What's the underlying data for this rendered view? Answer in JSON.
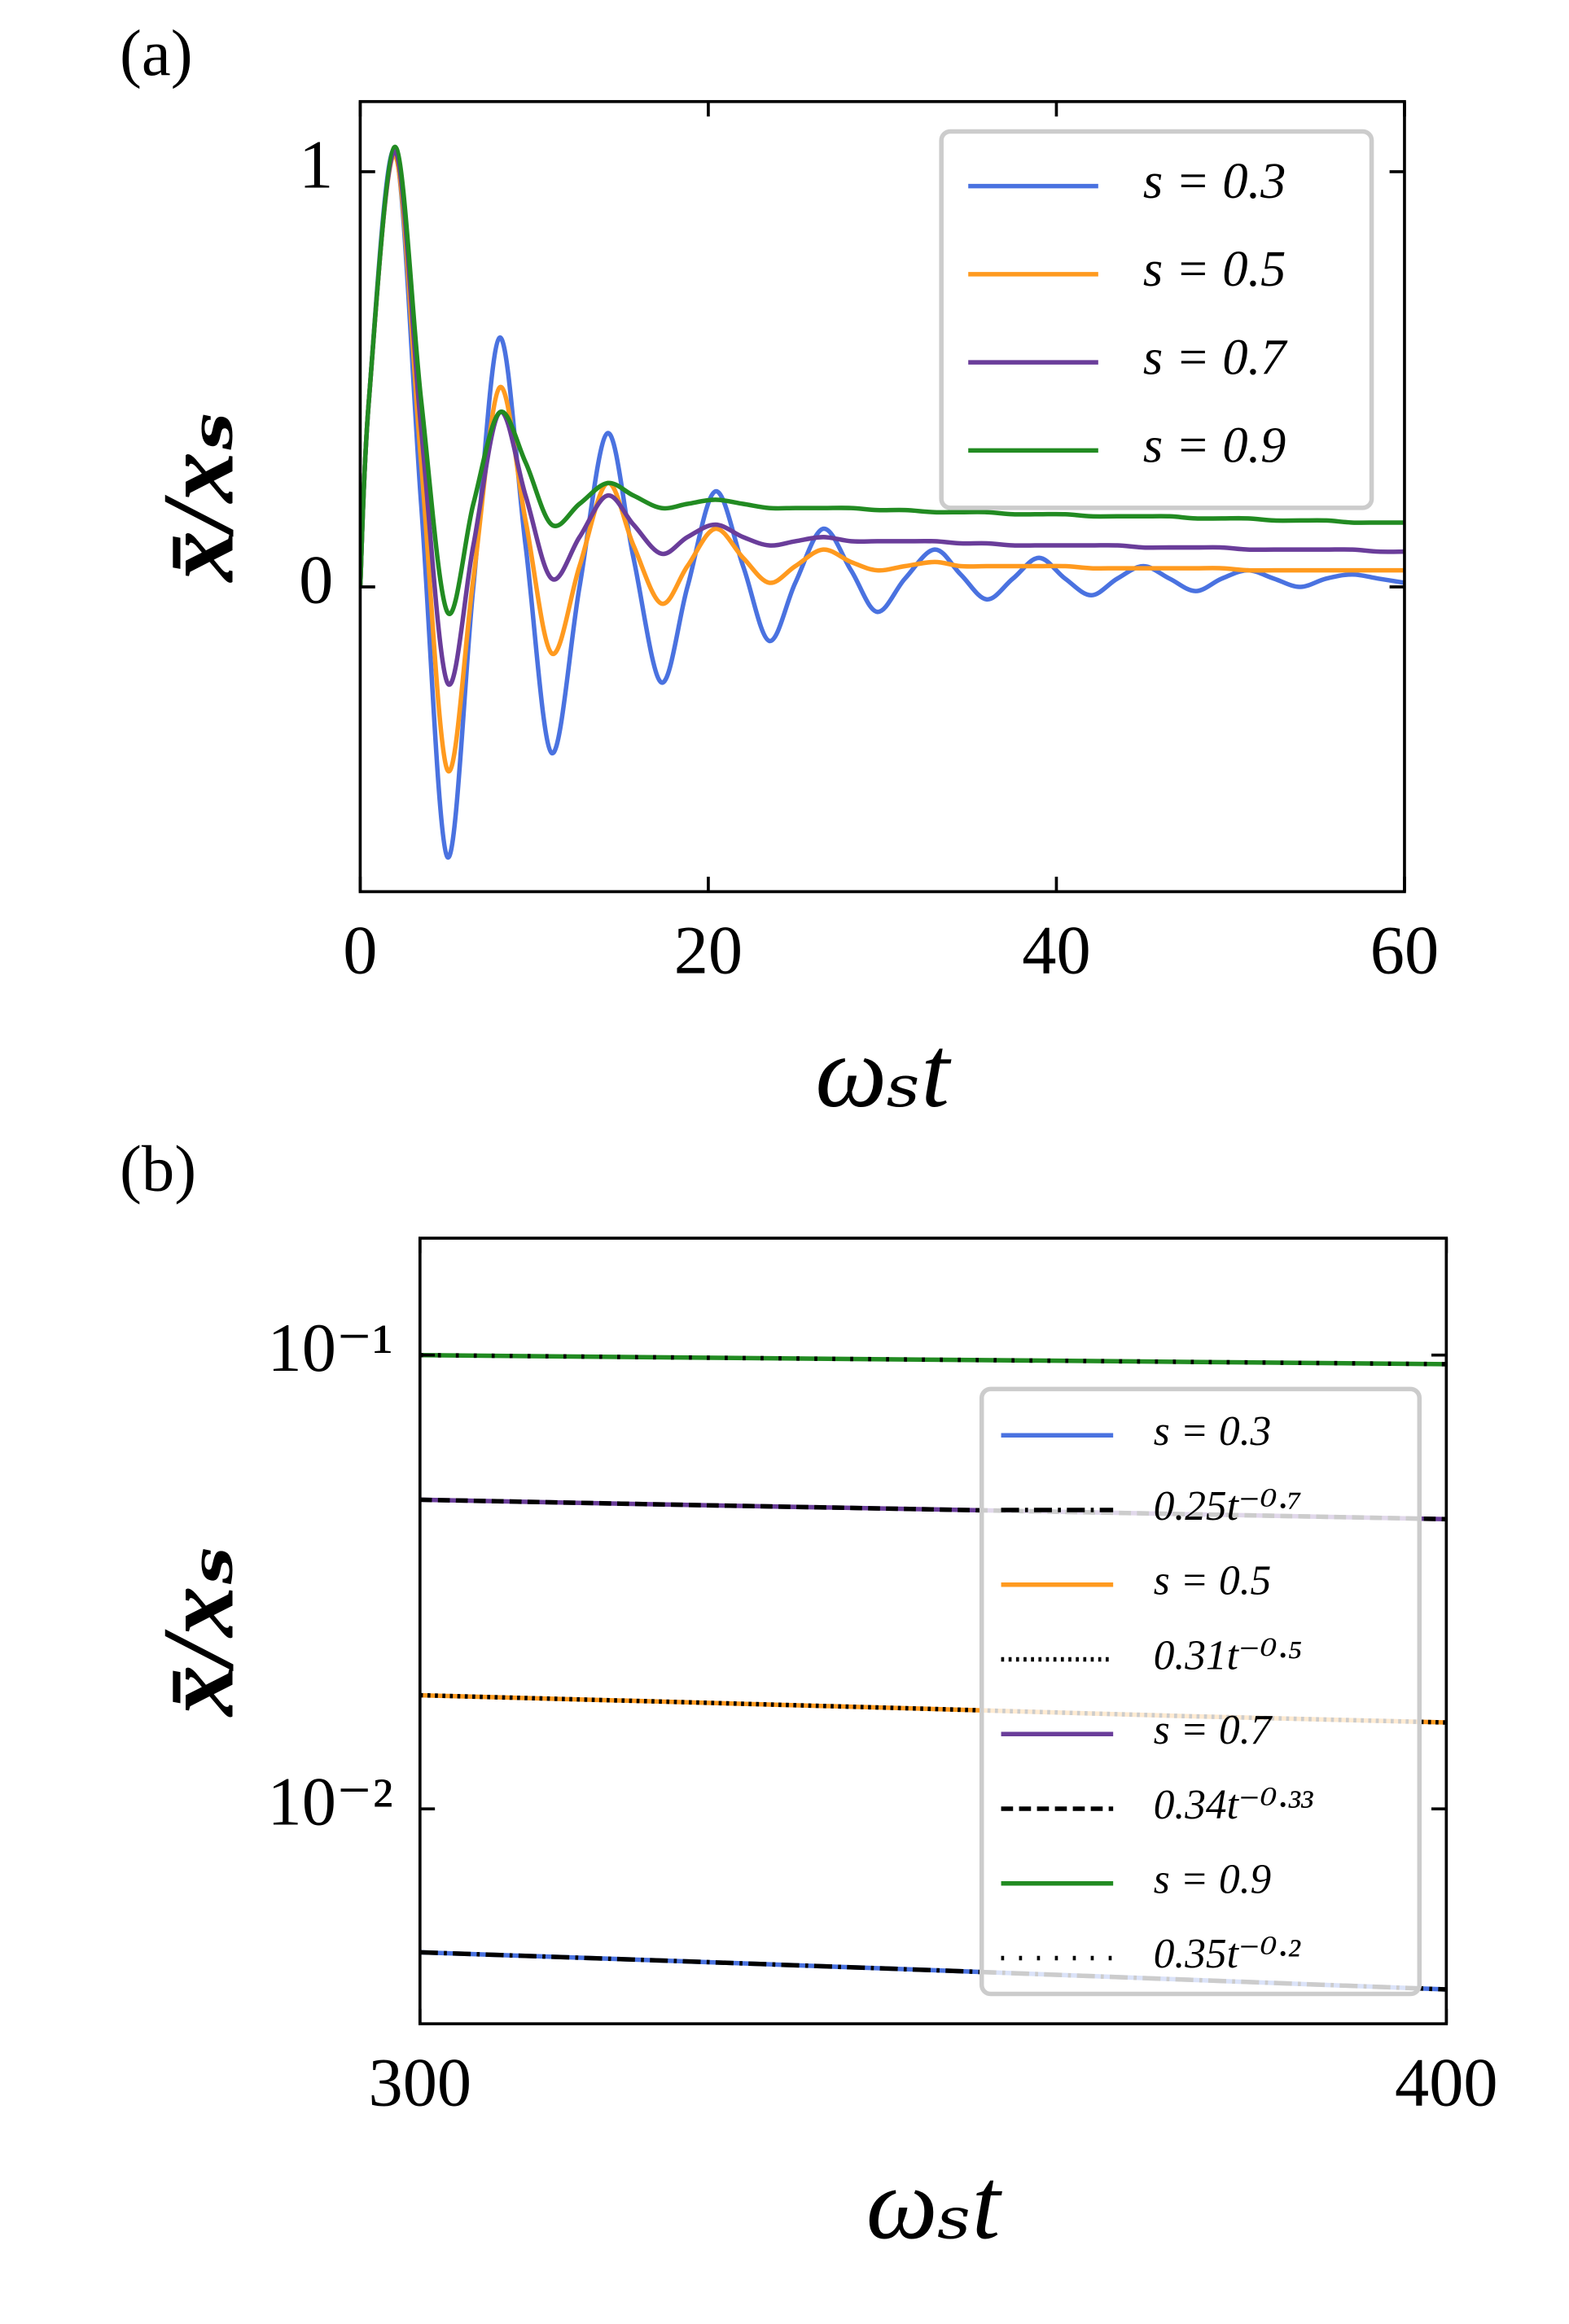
{
  "chart_data": [
    {
      "type": "line",
      "label": "(a)",
      "xlabel": "ωₛt",
      "ylabel": "x̄/xₛ",
      "x": [
        0,
        0.5,
        2,
        3.5,
        5,
        6.5,
        8,
        9.5,
        11,
        12.6,
        14.2,
        15.7,
        17.3,
        18.8,
        20.4,
        22,
        23.5,
        25,
        26.6,
        28.2,
        29.7,
        31.3,
        33,
        34.5,
        36,
        37.5,
        39,
        40.5,
        42,
        43.5,
        45,
        46.5,
        48,
        49.5,
        51,
        52.5,
        54,
        55.5,
        57,
        58.5,
        60
      ],
      "series": [
        {
          "name": "s = 0.3",
          "color": "#4a72e0",
          "values": [
            0,
            0.45,
            1.05,
            0.2,
            -0.65,
            0.0,
            0.6,
            0.1,
            -0.4,
            0.0,
            0.37,
            0.07,
            -0.23,
            0.0,
            0.23,
            0.05,
            -0.13,
            0.01,
            0.14,
            0.04,
            -0.06,
            0.02,
            0.09,
            0.03,
            -0.03,
            0.02,
            0.07,
            0.02,
            -0.02,
            0.02,
            0.05,
            0.02,
            -0.01,
            0.02,
            0.04,
            0.02,
            0.0,
            0.02,
            0.03,
            0.02,
            0.01
          ]
        },
        {
          "name": "s = 0.5",
          "color": "#ff9a1f",
          "values": [
            0,
            0.45,
            1.04,
            0.3,
            -0.44,
            0.02,
            0.48,
            0.16,
            -0.16,
            0.05,
            0.25,
            0.1,
            -0.04,
            0.05,
            0.14,
            0.07,
            0.01,
            0.05,
            0.09,
            0.06,
            0.04,
            0.05,
            0.06,
            0.05,
            0.05,
            0.05,
            0.05,
            0.05,
            0.045,
            0.045,
            0.045,
            0.045,
            0.045,
            0.045,
            0.04,
            0.04,
            0.04,
            0.04,
            0.04,
            0.04,
            0.04
          ]
        },
        {
          "name": "s = 0.7",
          "color": "#6a3d9a",
          "values": [
            0,
            0.45,
            1.05,
            0.38,
            -0.23,
            0.1,
            0.42,
            0.22,
            0.02,
            0.12,
            0.22,
            0.15,
            0.08,
            0.12,
            0.15,
            0.12,
            0.1,
            0.11,
            0.12,
            0.11,
            0.11,
            0.11,
            0.11,
            0.105,
            0.105,
            0.1,
            0.1,
            0.1,
            0.1,
            0.1,
            0.095,
            0.095,
            0.095,
            0.095,
            0.09,
            0.09,
            0.09,
            0.09,
            0.09,
            0.085,
            0.085
          ]
        },
        {
          "name": "s = 0.9",
          "color": "#228b22",
          "values": [
            0,
            0.45,
            1.06,
            0.45,
            -0.06,
            0.2,
            0.42,
            0.3,
            0.15,
            0.2,
            0.25,
            0.22,
            0.19,
            0.2,
            0.21,
            0.2,
            0.19,
            0.19,
            0.19,
            0.19,
            0.185,
            0.185,
            0.18,
            0.18,
            0.18,
            0.175,
            0.175,
            0.175,
            0.17,
            0.17,
            0.17,
            0.17,
            0.165,
            0.165,
            0.165,
            0.16,
            0.16,
            0.16,
            0.155,
            0.155,
            0.155
          ]
        }
      ],
      "xlim": [
        0,
        60
      ],
      "xticks": [
        0,
        20,
        40,
        60
      ],
      "ylim": [
        -0.734,
        1.169
      ],
      "yticks": [
        0,
        1
      ],
      "legend": "upper right"
    },
    {
      "type": "line",
      "label": "(b)",
      "xlabel": "ωₛt",
      "ylabel": "x̄/xₛ",
      "yscale": "log",
      "x": [
        300,
        325,
        350,
        375,
        400
      ],
      "series": [
        {
          "name": "s = 0.3",
          "color": "#4a72e0",
          "values": [
            0.00483,
            0.00462,
            0.00441,
            0.0042,
            0.004
          ]
        },
        {
          "name": "0.25t⁻⁰·⁷",
          "color": "#000000",
          "linestyle": "dashdot",
          "values": [
            0.00483,
            0.00462,
            0.00441,
            0.0042,
            0.004
          ]
        },
        {
          "name": "s = 0.5",
          "color": "#ff9a1f",
          "values": [
            0.0178,
            0.0172,
            0.0166,
            0.016,
            0.0155
          ]
        },
        {
          "name": "0.31t⁻⁰·⁵",
          "color": "#000000",
          "linestyle": "dotted",
          "values": [
            0.0178,
            0.0172,
            0.0166,
            0.016,
            0.0155
          ]
        },
        {
          "name": "s = 0.7",
          "color": "#6a3d9a",
          "values": [
            0.048,
            0.0468,
            0.0457,
            0.0446,
            0.0435
          ]
        },
        {
          "name": "0.34t⁻⁰·³³",
          "color": "#000000",
          "linestyle": "dashed",
          "values": [
            0.048,
            0.0468,
            0.0457,
            0.0446,
            0.0435
          ]
        },
        {
          "name": "s = 0.9",
          "color": "#228b22",
          "values": [
            0.1,
            0.0988,
            0.0977,
            0.0966,
            0.0955
          ]
        },
        {
          "name": "0.35t⁻⁰·²",
          "color": "#000000",
          "linestyle": "loosely dotted",
          "values": [
            0.1,
            0.0988,
            0.0977,
            0.0966,
            0.0955
          ]
        }
      ],
      "xlim": [
        300,
        400
      ],
      "xticks": [
        300,
        400
      ],
      "ylim": [
        0.00336,
        0.181
      ],
      "yticks": [
        {
          "value": 0.1,
          "label": "10⁻¹"
        },
        {
          "value": 0.01,
          "label": "10⁻²"
        }
      ],
      "legend": "upper right"
    }
  ]
}
